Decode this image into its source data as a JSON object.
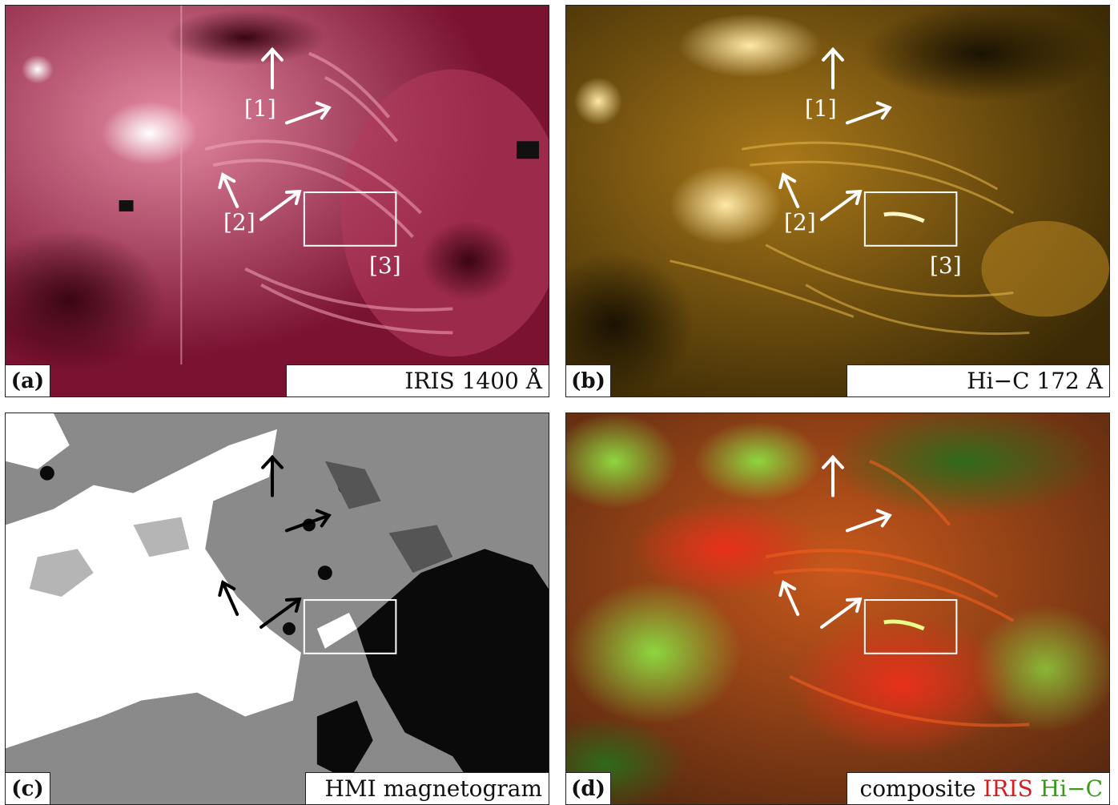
{
  "panels": {
    "a": {
      "letter": "(a)",
      "caption": "IRIS 1400 Å",
      "base": "#7a1232",
      "highlight": "#f3c3cf"
    },
    "b": {
      "letter": "(b)",
      "caption": "Hi−C 172 Å",
      "base": "#3b2a05",
      "highlight": "#f4d27a"
    },
    "c": {
      "letter": "(c)",
      "caption": "HMI magnetogram",
      "base": "#8a8a8a"
    },
    "d": {
      "letter": "(d)",
      "caption_prefix": "composite ",
      "caption_red": "IRIS",
      "caption_green": "Hi−C",
      "base": "#8a3f14"
    }
  },
  "annotations": {
    "label_1": "[1]",
    "label_2": "[2]",
    "label_3": "[3]"
  }
}
